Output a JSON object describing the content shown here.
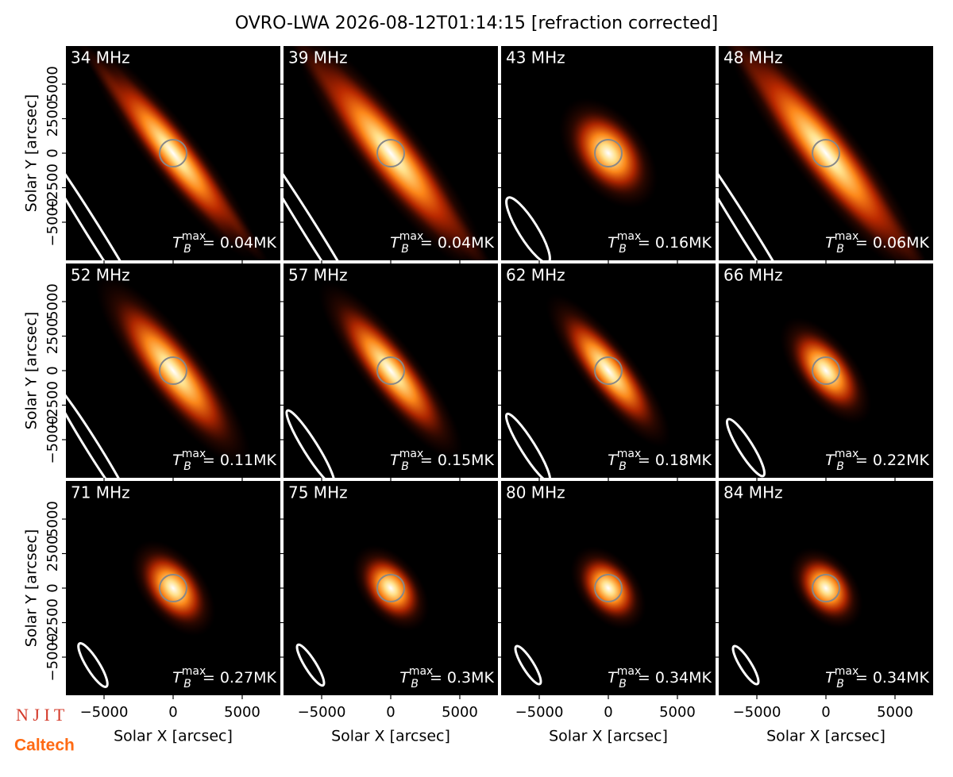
{
  "chart_data": {
    "type": "image_grid",
    "title": "OVRO-LWA 2026-08-12T01:14:15 [refraction corrected]",
    "xlabel": "Solar X [arcsec]",
    "ylabel": "Solar Y [arcsec]",
    "xlim": [
      -7760,
      7760
    ],
    "ylim": [
      -7760,
      7760
    ],
    "xticks": [
      {
        "value": -5000,
        "label": "−5000"
      },
      0,
      5000
    ],
    "yticks": [
      {
        "value": -5000,
        "label": "−5000"
      },
      {
        "value": -2500,
        "label": "−2500"
      },
      0,
      2500,
      5000
    ],
    "tb_symbol": "T",
    "tb_sub": "B",
    "tb_sup": "max",
    "panels": [
      {
        "title": "34 MHz",
        "annotation": "= 0.04MK"
      },
      {
        "title": "39 MHz",
        "annotation": "= 0.04MK"
      },
      {
        "title": "43 MHz",
        "annotation": "= 0.16MK"
      },
      {
        "title": "48 MHz",
        "annotation": "= 0.06MK"
      },
      {
        "title": "52 MHz",
        "annotation": "= 0.11MK"
      },
      {
        "title": "57 MHz",
        "annotation": "= 0.15MK"
      },
      {
        "title": "62 MHz",
        "annotation": "= 0.18MK"
      },
      {
        "title": "66 MHz",
        "annotation": "= 0.22MK"
      },
      {
        "title": "71 MHz",
        "annotation": "= 0.27MK"
      },
      {
        "title": "75 MHz",
        "annotation": "= 0.3MK"
      },
      {
        "title": "80 MHz",
        "annotation": "= 0.34MK"
      },
      {
        "title": "84 MHz",
        "annotation": "= 0.34MK"
      }
    ]
  },
  "logos": [
    "N J I T",
    "Caltech"
  ]
}
